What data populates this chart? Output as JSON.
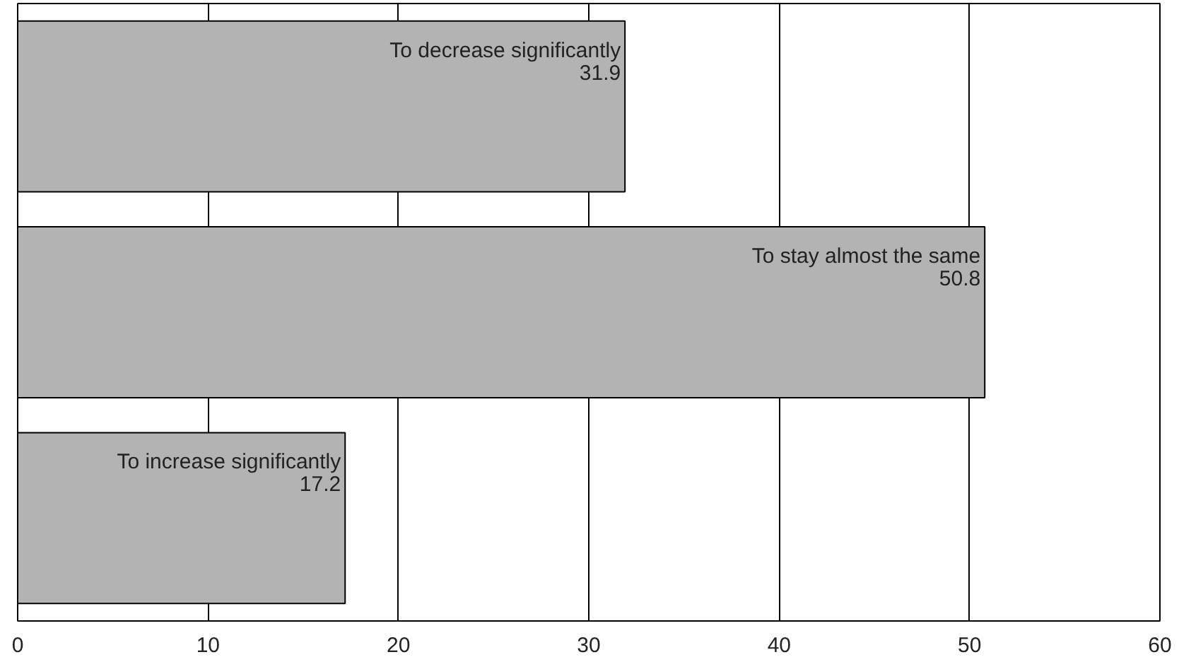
{
  "chart_data": {
    "type": "bar",
    "orientation": "horizontal",
    "categories": [
      "To decrease significantly",
      "To stay almost the same",
      "To increase significantly"
    ],
    "values": [
      31.9,
      50.8,
      17.2
    ],
    "color": "#b3b3b3",
    "data_labels": true,
    "xlim": [
      0,
      60
    ],
    "xticks": [
      0,
      10,
      20,
      30,
      40,
      50,
      60
    ],
    "grid": "x"
  }
}
